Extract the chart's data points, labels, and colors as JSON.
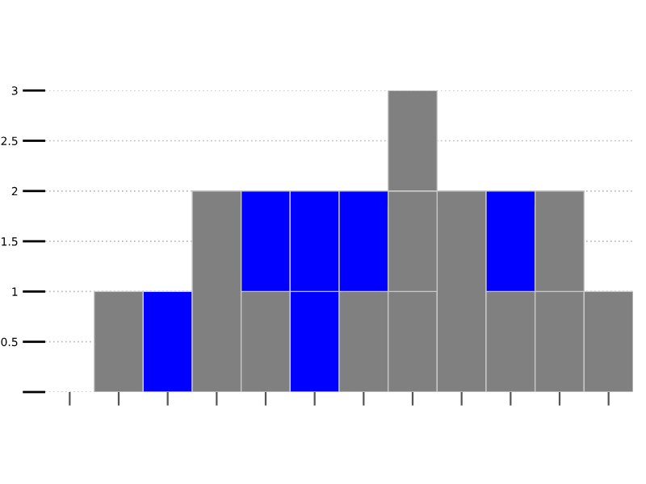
{
  "chart_data": {
    "type": "bar",
    "stacked": true,
    "categories": [
      null,
      null,
      null,
      null,
      null,
      null,
      null,
      null,
      null,
      null,
      null,
      null
    ],
    "series": [
      {
        "colors": [
          "#808080",
          "#808080",
          "#0000ff",
          "#808080",
          "#808080",
          "#0000ff",
          "#808080",
          "#808080",
          "#808080",
          "#808080",
          "#808080",
          "#808080"
        ],
        "values": [
          null,
          1,
          1,
          2,
          1,
          1,
          1,
          1,
          2,
          1,
          1,
          1
        ]
      },
      {
        "colors": [
          "#808080",
          "#808080",
          "#808080",
          "#808080",
          "#0000ff",
          "#0000ff",
          "#0000ff",
          "#808080",
          "#808080",
          "#0000ff",
          "#808080",
          "#808080"
        ],
        "values": [
          null,
          null,
          null,
          null,
          1,
          1,
          1,
          1,
          null,
          1,
          1,
          null
        ]
      },
      {
        "colors": [
          "#808080",
          "#808080",
          "#808080",
          "#808080",
          "#808080",
          "#808080",
          "#808080",
          "#808080",
          "#808080",
          "#808080",
          "#808080",
          "#808080"
        ],
        "values": [
          null,
          null,
          null,
          null,
          null,
          null,
          null,
          1,
          null,
          null,
          null,
          null
        ]
      }
    ],
    "ylim": [
      0,
      3
    ],
    "yticks": [
      {
        "value": 0,
        "label": null
      },
      0.5,
      1,
      1.5,
      2,
      2.5,
      3
    ],
    "grid": "y",
    "tick_labels": "y"
  }
}
